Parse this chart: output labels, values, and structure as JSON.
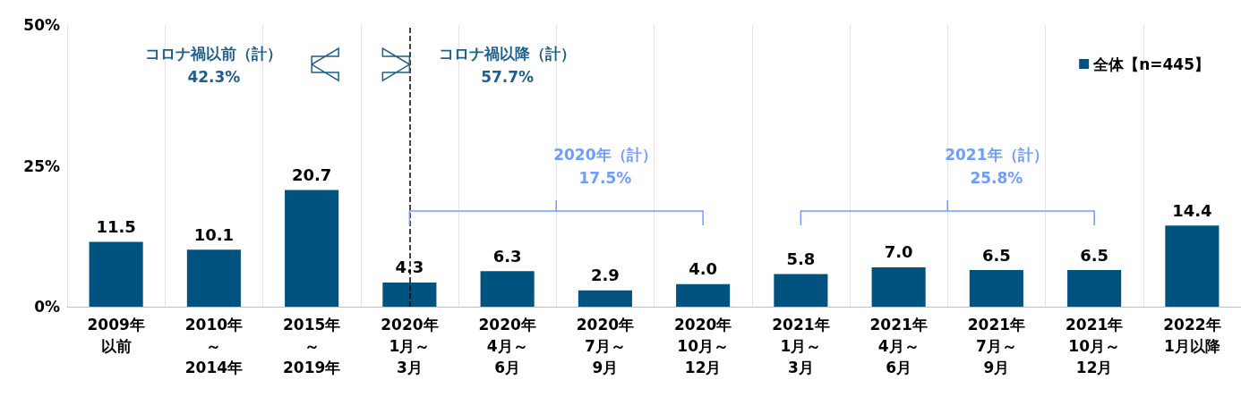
{
  "chart_data": {
    "type": "bar",
    "categories": [
      "2009年以前",
      "2010年～2014年",
      "2015年～2019年",
      "2020年1月～3月",
      "2020年4月～6月",
      "2020年7月～9月",
      "2020年10月～12月",
      "2021年1月～3月",
      "2021年4月～6月",
      "2021年7月～9月",
      "2021年10月～12月",
      "2022年1月以降"
    ],
    "series": [
      {
        "name": "全体【n=445】",
        "color": "#00527f",
        "values": [
          11.5,
          10.1,
          20.7,
          4.3,
          6.3,
          2.9,
          4.0,
          5.8,
          7.0,
          6.5,
          6.5,
          14.4
        ],
        "value_labels": [
          "11.5",
          "10.1",
          "20.7",
          "4.3",
          "6.3",
          "2.9",
          "4.0",
          "5.8",
          "7.0",
          "6.5",
          "6.5",
          "14.4"
        ]
      }
    ],
    "ylim": [
      0,
      50
    ],
    "yticks": [
      {
        "value": 0,
        "label": "0%"
      },
      {
        "value": 25,
        "label": "25%"
      },
      {
        "value": 50,
        "label": "50%"
      }
    ],
    "grid": "x",
    "legend": "top right",
    "ref_lines": [
      {
        "axis": "x",
        "value": "2020年1月～3月",
        "line_style": "dashed",
        "color": "#000000"
      }
    ],
    "annotations": [
      "コロナ禍以前（計）\n42.3%",
      "コロナ禍以降（計）\n57.7%",
      "2020年（計）\n17.5%",
      "2021年（計）\n25.8%"
    ]
  }
}
